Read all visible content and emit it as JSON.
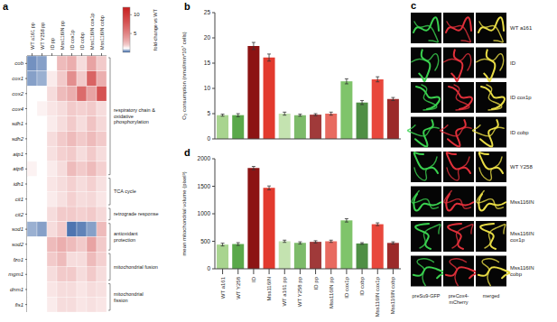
{
  "chart_data": [
    {
      "type": "heatmap",
      "label": "a",
      "columns": [
        "WT a161 pp",
        "WT Y258 pp",
        "ID pp",
        "Mss116IN pp",
        "ID cox1p",
        "ID cobp",
        "Mss116IN cox1p",
        "Mss116IN cobp"
      ],
      "rows": [
        "cob",
        "cox1",
        "cox2",
        "cox4",
        "sdh1",
        "sdh2",
        "atp1",
        "atp6",
        "idh1",
        "cit1",
        "cit2",
        "sod1",
        "sod2",
        "fzo1",
        "mgm1",
        "dnm1",
        "fis1"
      ],
      "groups": [
        {
          "label": "respiratory chain & oxidative phosphorylation",
          "rows": [
            "cob",
            "cox1",
            "cox2",
            "cox4",
            "sdh1",
            "sdh2",
            "atp1",
            "atp6"
          ]
        },
        {
          "label": "TCA cycle",
          "rows": [
            "idh1",
            "cit1"
          ]
        },
        {
          "label": "retrograde response",
          "rows": [
            "cit2"
          ]
        },
        {
          "label": "antioxidant protection",
          "rows": [
            "sod1",
            "sod2"
          ]
        },
        {
          "label": "mitochondrial fusion",
          "rows": [
            "fzo1",
            "mgm1"
          ]
        },
        {
          "label": "mitochondrial fission",
          "rows": [
            "dnm1",
            "fis1"
          ]
        }
      ],
      "cells": [
        [
          0.4,
          0.5,
          1.0,
          2.5,
          3.0,
          1.5,
          3.5,
          2.0
        ],
        [
          0.5,
          0.6,
          1.2,
          2.0,
          4.5,
          2.0,
          7.0,
          3.0
        ],
        [
          1.0,
          1.0,
          1.5,
          2.5,
          3.0,
          6.5,
          3.5,
          8.0
        ],
        [
          1.0,
          1.1,
          1.3,
          1.5,
          2.0,
          1.8,
          2.0,
          1.5
        ],
        [
          1.0,
          1.0,
          1.2,
          1.5,
          2.0,
          1.5,
          2.2,
          1.6
        ],
        [
          1.0,
          1.0,
          1.5,
          2.0,
          2.5,
          2.0,
          2.5,
          2.0
        ],
        [
          1.0,
          1.0,
          1.4,
          1.8,
          2.0,
          1.5,
          2.0,
          1.5
        ],
        [
          1.1,
          1.0,
          1.2,
          1.5,
          2.5,
          2.0,
          2.5,
          1.8
        ],
        [
          1.0,
          1.0,
          1.3,
          1.5,
          1.8,
          1.5,
          1.8,
          1.4
        ],
        [
          1.0,
          1.0,
          1.2,
          1.4,
          1.8,
          1.5,
          1.6,
          1.3
        ],
        [
          1.0,
          1.0,
          1.5,
          2.0,
          2.0,
          1.8,
          2.0,
          1.6
        ],
        [
          0.6,
          0.5,
          1.5,
          2.0,
          0.2,
          0.3,
          0.5,
          2.5
        ],
        [
          1.0,
          1.0,
          2.5,
          3.0,
          2.5,
          2.0,
          3.5,
          2.0
        ],
        [
          1.0,
          1.0,
          2.0,
          2.5,
          1.5,
          1.5,
          2.5,
          1.8
        ],
        [
          1.0,
          1.0,
          1.5,
          2.0,
          2.0,
          1.5,
          2.0,
          1.5
        ],
        [
          1.0,
          1.0,
          1.3,
          1.5,
          1.5,
          1.3,
          1.5,
          1.4
        ],
        [
          1.0,
          1.0,
          1.2,
          1.5,
          1.5,
          1.3,
          1.4,
          1.3
        ]
      ],
      "colorbar_label": "fold-change vs WT",
      "colorbar_range": [
        0,
        12
      ],
      "colorbar_ticks": [
        5,
        10
      ]
    },
    {
      "type": "bar",
      "label": "b",
      "ylabel": "O₂ consumption (nmol/min*10⁷ cells)",
      "categories": [
        "WT a161",
        "WT Y258",
        "ID",
        "Mss116IN",
        "WT a161 pp",
        "WT Y258 pp",
        "ID pp",
        "Mss116IN pp",
        "ID cox1p",
        "ID cobp",
        "Mss116IN cox1p",
        "Mss116IN cobp"
      ],
      "values": [
        4.7,
        4.7,
        18.4,
        16.1,
        5.0,
        4.7,
        4.8,
        5.0,
        11.4,
        7.2,
        11.8,
        7.9
      ],
      "errors": [
        0.2,
        0.3,
        0.7,
        0.7,
        0.3,
        0.2,
        0.2,
        0.3,
        0.5,
        0.4,
        0.5,
        0.3
      ],
      "colors": [
        "#a8d48f",
        "#5aa84a",
        "#8c1313",
        "#e23a2e",
        "#c4e3b0",
        "#7dbb6a",
        "#a03a3a",
        "#e86a60",
        "#7fc46a",
        "#4f8f45",
        "#e8473c",
        "#9b2a2a"
      ],
      "ylim": [
        0,
        25
      ],
      "yticks": [
        0,
        5,
        10,
        15,
        20,
        25
      ],
      "tick_labels": "y"
    },
    {
      "type": "bar",
      "label": "d",
      "ylabel": "mean mitochondrial volume (pixel³)",
      "categories": [
        "WT a161",
        "WT Y258",
        "ID",
        "Mss116IN",
        "WT a161 pp",
        "WT Y258 pp",
        "ID pp",
        "Mss116IN pp",
        "ID cox1p",
        "ID cobp",
        "Mss116IN cox1p",
        "Mss116IN cobp"
      ],
      "values": [
        440,
        450,
        1830,
        1470,
        500,
        470,
        490,
        500,
        880,
        460,
        810,
        470
      ],
      "errors": [
        25,
        25,
        30,
        35,
        20,
        20,
        20,
        20,
        30,
        15,
        25,
        20
      ],
      "colors": [
        "#a8d48f",
        "#5aa84a",
        "#8c1313",
        "#e23a2e",
        "#c4e3b0",
        "#7dbb6a",
        "#a03a3a",
        "#e86a60",
        "#7fc46a",
        "#4f8f45",
        "#e8473c",
        "#9b2a2a"
      ],
      "ylim": [
        0,
        2000
      ],
      "yticks": [
        0,
        500,
        1000,
        1500,
        2000
      ]
    }
  ],
  "image_panel": {
    "label": "c",
    "rows": [
      "WT a161",
      "ID",
      "ID cox1p",
      "ID cobp",
      "WT Y258",
      "Mss116IN",
      "Mss116IN cox1p",
      "Mss116IN cobp"
    ],
    "columns": [
      "preSu9-GFP",
      "preCox4-mCherry",
      "merged"
    ]
  }
}
